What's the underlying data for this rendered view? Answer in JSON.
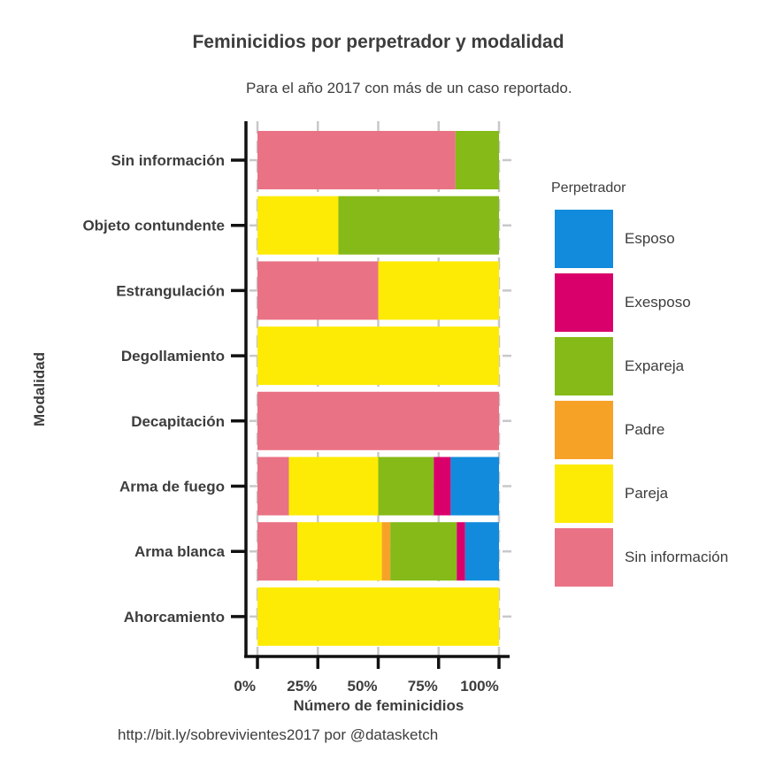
{
  "title": "Feminicidios por perpetrador y modalidad",
  "subtitle": "Para el año 2017 con más de un caso reportado.",
  "caption": "http://bit.ly/sobrevivientes2017 por @datasketch",
  "legend": {
    "title": "Perpetrador",
    "items": [
      {
        "label": "Esposo",
        "color": "#128BDD"
      },
      {
        "label": "Exesposo",
        "color": "#DA006B"
      },
      {
        "label": "Expareja",
        "color": "#85BA19"
      },
      {
        "label": "Padre",
        "color": "#F6A227"
      },
      {
        "label": "Pareja",
        "color": "#FDEB05"
      },
      {
        "label": "Sin información",
        "color": "#EA7285"
      }
    ]
  },
  "chart_data": {
    "type": "bar",
    "orientation": "horizontal",
    "stacked": "percent",
    "title": "Feminicidios por perpetrador y modalidad",
    "subtitle": "Para el año 2017 con más de un caso reportado.",
    "xlabel": "Número de feminicidios",
    "ylabel": "Modalidad",
    "x_ticks": [
      "0%",
      "25%",
      "50%",
      "75%",
      "100%"
    ],
    "xlim": [
      0,
      100
    ],
    "grid": true,
    "legend_position": "right",
    "categories": [
      "Sin información",
      "Objeto contundente",
      "Estrangulación",
      "Degollamiento",
      "Decapitación",
      "Arma de fuego",
      "Arma blanca",
      "Ahorcamiento"
    ],
    "series": [
      {
        "name": "Sin información",
        "color": "#EA7285",
        "values": [
          82,
          0,
          50,
          0,
          100,
          13,
          16.5,
          0
        ]
      },
      {
        "name": "Pareja",
        "color": "#FDEB05",
        "values": [
          0,
          33.5,
          50,
          100,
          0,
          37,
          35,
          100
        ]
      },
      {
        "name": "Padre",
        "color": "#F6A227",
        "values": [
          0,
          0,
          0,
          0,
          0,
          0,
          3.5,
          0
        ]
      },
      {
        "name": "Expareja",
        "color": "#85BA19",
        "values": [
          18,
          66.5,
          0,
          0,
          0,
          23,
          27.5,
          0
        ]
      },
      {
        "name": "Exesposo",
        "color": "#DA006B",
        "values": [
          0,
          0,
          0,
          0,
          0,
          7,
          3.5,
          0
        ]
      },
      {
        "name": "Esposo",
        "color": "#128BDD",
        "values": [
          0,
          0,
          0,
          0,
          0,
          20,
          14,
          0
        ]
      }
    ]
  }
}
